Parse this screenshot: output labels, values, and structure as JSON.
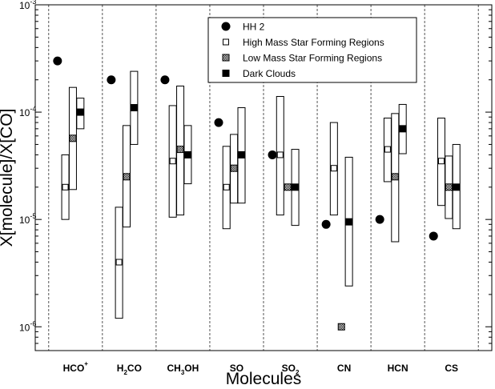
{
  "chart_data": {
    "type": "scatter",
    "xlabel": "Molecules",
    "ylabel": "X[molecule]/X[CO]",
    "yscale": "log",
    "ylim": [
      6e-07,
      0.001
    ],
    "y_ticks": [
      {
        "value": 1e-06,
        "base": "10",
        "exp": "-6"
      },
      {
        "value": 1e-05,
        "base": "10",
        "exp": "-5"
      },
      {
        "value": 0.0001,
        "base": "10",
        "exp": "-4"
      },
      {
        "value": 0.001,
        "base": "10",
        "exp": "-3"
      }
    ],
    "categories": [
      {
        "base": "HCO",
        "sub": "",
        "sup": "+"
      },
      {
        "base": "H",
        "sub": "2",
        "rest": "CO"
      },
      {
        "base": "CH",
        "sub": "3",
        "rest": "OH"
      },
      {
        "base": "SO"
      },
      {
        "base": "SO",
        "sub": "2"
      },
      {
        "base": "CN"
      },
      {
        "base": "HCN"
      },
      {
        "base": "CS"
      }
    ],
    "grid": "vertical-dashed-separators",
    "legend_position": "top-right",
    "series": [
      {
        "name": "HH 2",
        "marker": "filled-circle",
        "values": [
          0.0003,
          0.0002,
          0.0002,
          8e-05,
          4e-05,
          9e-06,
          1e-05,
          7e-06
        ]
      },
      {
        "name": "High Mass Star Forming Regions",
        "marker": "white-square",
        "values": [
          2e-05,
          4e-06,
          3.5e-05,
          2e-05,
          4e-05,
          3e-05,
          4.5e-05,
          3.5e-05
        ],
        "ranges": [
          [
            1e-05,
            4e-05
          ],
          [
            1.2e-06,
            1.3e-05
          ],
          [
            1.05e-05,
            0.000115
          ],
          [
            8.2e-06,
            4.8e-05
          ],
          [
            1.1e-05,
            0.00014
          ],
          [
            1.1e-05,
            8e-05
          ],
          [
            2.25e-05,
            8.8e-05
          ],
          [
            1.35e-05,
            8.8e-05
          ]
        ]
      },
      {
        "name": "Low Mass Star Forming Regions",
        "marker": "hatched-square",
        "values": [
          5.7e-05,
          2.5e-05,
          4.5e-05,
          3e-05,
          2e-05,
          1e-06,
          2.5e-05,
          2e-05
        ],
        "ranges": [
          [
            1.9e-05,
            0.00017
          ],
          [
            8.5e-06,
            7.5e-05
          ],
          [
            1.1e-05,
            0.000175
          ],
          [
            1.42e-05,
            6.2e-05
          ],
          [
            null,
            null
          ],
          [
            null,
            null
          ],
          [
            6.2e-06,
            9.7e-05
          ],
          [
            1.02e-05,
            3.9e-05
          ]
        ]
      },
      {
        "name": "Dark Clouds",
        "marker": "black-square",
        "values": [
          0.0001,
          0.00011,
          4e-05,
          4e-05,
          2e-05,
          9.5e-06,
          7e-05,
          2e-05
        ],
        "ranges": [
          [
            7e-05,
            0.000135
          ],
          [
            5e-05,
            0.00024
          ],
          [
            2.15e-05,
            7.5e-05
          ],
          [
            1.42e-05,
            0.00011
          ],
          [
            8.8e-06,
            4.5e-05
          ],
          [
            2.4e-06,
            3.8e-05
          ],
          [
            4.1e-05,
            0.000118
          ],
          [
            8.2e-06,
            5e-05
          ]
        ]
      }
    ]
  }
}
